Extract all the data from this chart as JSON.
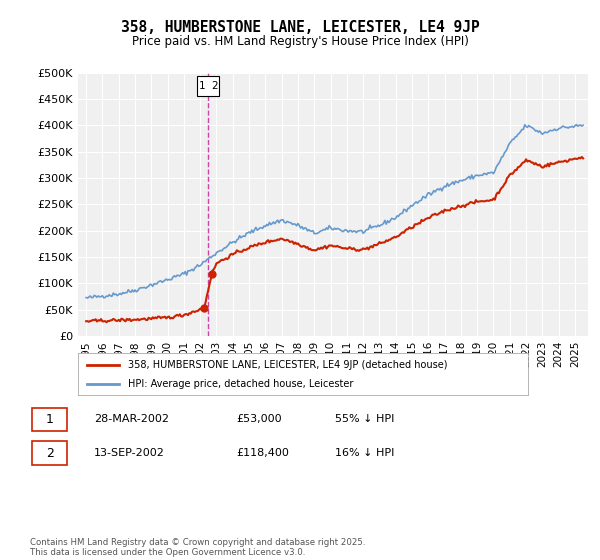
{
  "title": "358, HUMBERSTONE LANE, LEICESTER, LE4 9JP",
  "subtitle": "Price paid vs. HM Land Registry's House Price Index (HPI)",
  "hpi_color": "#6699cc",
  "price_color": "#cc2200",
  "vline_color": "#cc44aa",
  "background_color": "#ffffff",
  "plot_bg_color": "#f0f0f0",
  "ylim": [
    0,
    500000
  ],
  "yticks": [
    0,
    50000,
    100000,
    150000,
    200000,
    250000,
    300000,
    350000,
    400000,
    450000,
    500000
  ],
  "ytick_labels": [
    "£0",
    "£50K",
    "£100K",
    "£150K",
    "£200K",
    "£250K",
    "£300K",
    "£350K",
    "£400K",
    "£450K",
    "£500K"
  ],
  "xlim_start": 1994.5,
  "xlim_end": 2025.8,
  "sale1_date": 2002.24,
  "sale1_price": 53000,
  "sale2_date": 2002.71,
  "sale2_price": 118400,
  "sale1_label": "1",
  "sale2_label": "2",
  "legend_line1": "358, HUMBERSTONE LANE, LEICESTER, LE4 9JP (detached house)",
  "legend_line2": "HPI: Average price, detached house, Leicester",
  "table_row1": [
    "1",
    "28-MAR-2002",
    "£53,000",
    "55% ↓ HPI"
  ],
  "table_row2": [
    "2",
    "13-SEP-2002",
    "£118,400",
    "16% ↓ HPI"
  ],
  "footer": "Contains HM Land Registry data © Crown copyright and database right 2025.\nThis data is licensed under the Open Government Licence v3.0.",
  "xticks": [
    1995,
    1996,
    1997,
    1998,
    1999,
    2000,
    2001,
    2002,
    2003,
    2004,
    2005,
    2006,
    2007,
    2008,
    2009,
    2010,
    2011,
    2012,
    2013,
    2014,
    2015,
    2016,
    2017,
    2018,
    2019,
    2020,
    2021,
    2022,
    2023,
    2024,
    2025
  ],
  "hpi_years": [
    1995,
    1996,
    1997,
    1998,
    1999,
    2000,
    2001,
    2002,
    2003,
    2004,
    2005,
    2006,
    2007,
    2008,
    2009,
    2010,
    2011,
    2012,
    2013,
    2014,
    2015,
    2016,
    2017,
    2018,
    2019,
    2020,
    2021,
    2022,
    2023,
    2024,
    2025.5
  ],
  "hpi_values": [
    72000,
    76000,
    80000,
    87000,
    97000,
    107000,
    118000,
    135000,
    158000,
    178000,
    196000,
    210000,
    220000,
    210000,
    195000,
    205000,
    200000,
    198000,
    210000,
    225000,
    248000,
    268000,
    285000,
    295000,
    305000,
    310000,
    365000,
    400000,
    385000,
    395000,
    400000
  ],
  "price_years": [
    1995,
    1996,
    1997,
    1998,
    1999,
    2000,
    2001,
    2002.24,
    2002.71,
    2003,
    2004,
    2005,
    2006,
    2007,
    2008,
    2009,
    2010,
    2011,
    2012,
    2013,
    2014,
    2015,
    2016,
    2017,
    2018,
    2019,
    2020,
    2021,
    2022,
    2023,
    2024,
    2025.5
  ],
  "price_values": [
    28000,
    29000,
    30000,
    31000,
    33000,
    35000,
    40000,
    53000,
    118400,
    138000,
    155000,
    168000,
    178000,
    185000,
    175000,
    163000,
    172000,
    166000,
    164000,
    175000,
    188000,
    207000,
    224000,
    238000,
    247000,
    255000,
    259000,
    305000,
    334000,
    322000,
    330000,
    340000
  ]
}
